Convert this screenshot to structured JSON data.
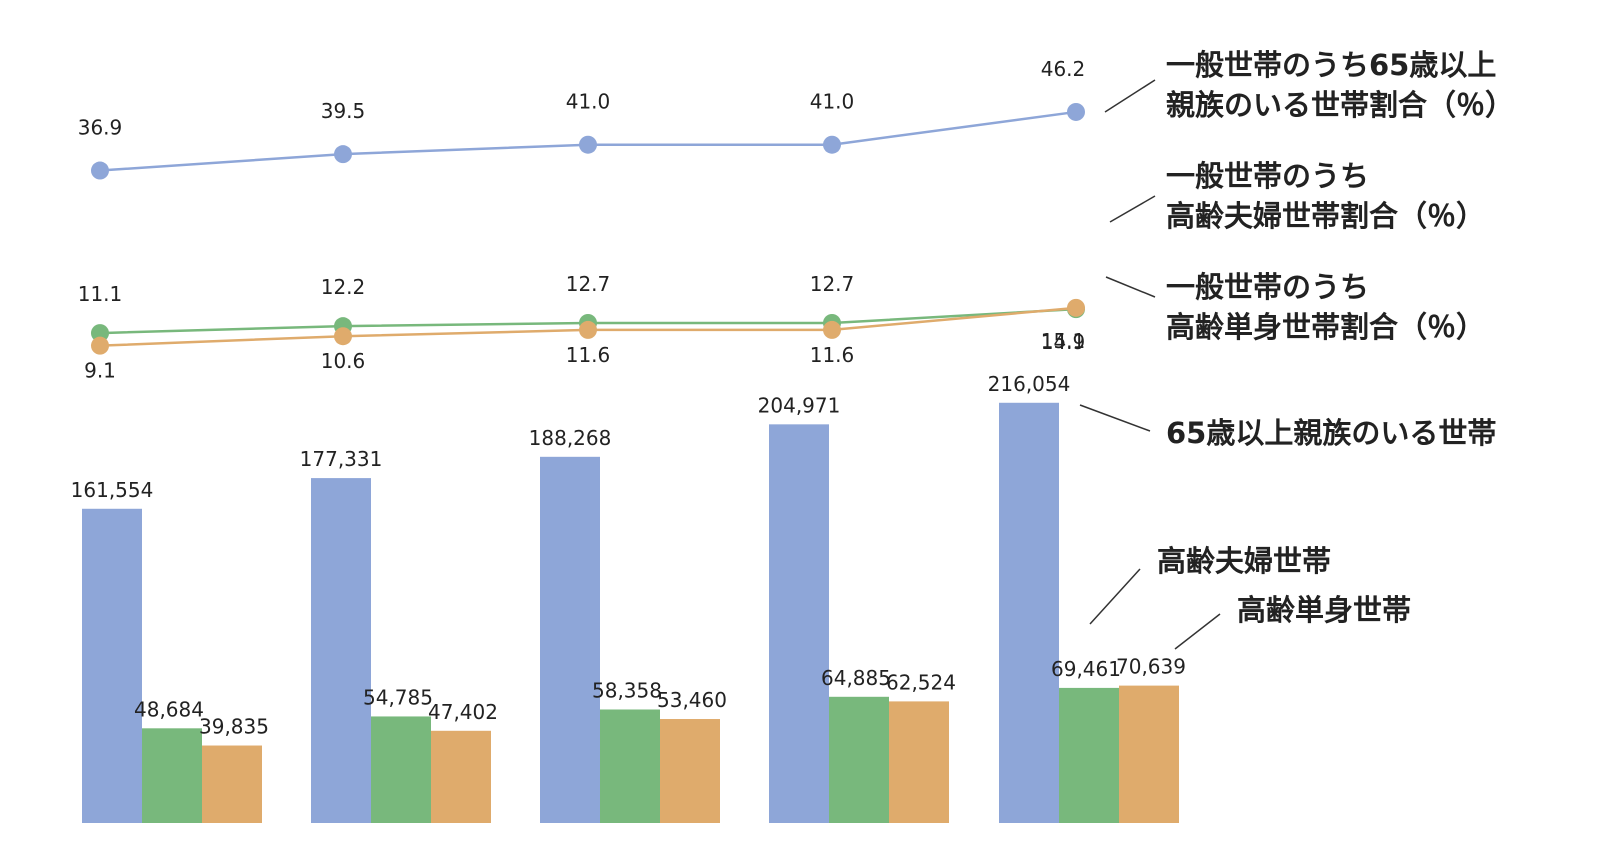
{
  "chart_data": [
    {
      "type": "line",
      "categories": [
        "",
        "",
        "",
        "",
        ""
      ],
      "series": [
        {
          "name": "一般世帯のうち65歳以上\n親族のいる世帯割合（％）",
          "values": [
            36.9,
            39.5,
            41.0,
            41.0,
            46.2
          ],
          "labels": [
            "36.9",
            "39.5",
            "41.0",
            "41.0",
            "46.2"
          ],
          "color": "#8ea6d8"
        },
        {
          "name": "一般世帯のうち\n高齢夫婦世帯割合（％）",
          "values": [
            11.1,
            12.2,
            12.7,
            12.7,
            14.9
          ],
          "labels": [
            "11.1",
            "12.2",
            "12.7",
            "12.7",
            "14.9"
          ],
          "color": "#78b87c"
        },
        {
          "name": "一般世帯のうち\n高齢単身世帯割合（％）",
          "values": [
            9.1,
            10.6,
            11.6,
            11.6,
            15.1
          ],
          "labels": [
            "9.1",
            "10.6",
            "11.6",
            "11.6",
            "15.1"
          ],
          "color": "#dfab6c"
        }
      ],
      "grid": false,
      "legend": "right"
    },
    {
      "type": "bar",
      "categories": [
        "",
        "",
        "",
        "",
        ""
      ],
      "series": [
        {
          "name": "65歳以上親族のいる世帯",
          "values": [
            161554,
            177331,
            188268,
            204971,
            216054
          ],
          "labels": [
            "161,554",
            "177,331",
            "188,268",
            "204,971",
            "216,054"
          ],
          "color": "#8ea6d8"
        },
        {
          "name": "高齢夫婦世帯",
          "values": [
            48684,
            54785,
            58358,
            64885,
            69461
          ],
          "labels": [
            "48,684",
            "54,785",
            "58,358",
            "64,885",
            "69,461"
          ],
          "color": "#78b87c"
        },
        {
          "name": "高齢単身世帯",
          "values": [
            39835,
            47402,
            53460,
            62524,
            70639
          ],
          "labels": [
            "39,835",
            "47,402",
            "53,460",
            "62,524",
            "70,639"
          ],
          "color": "#dfab6c"
        }
      ],
      "grid": false,
      "legend": "right"
    }
  ]
}
